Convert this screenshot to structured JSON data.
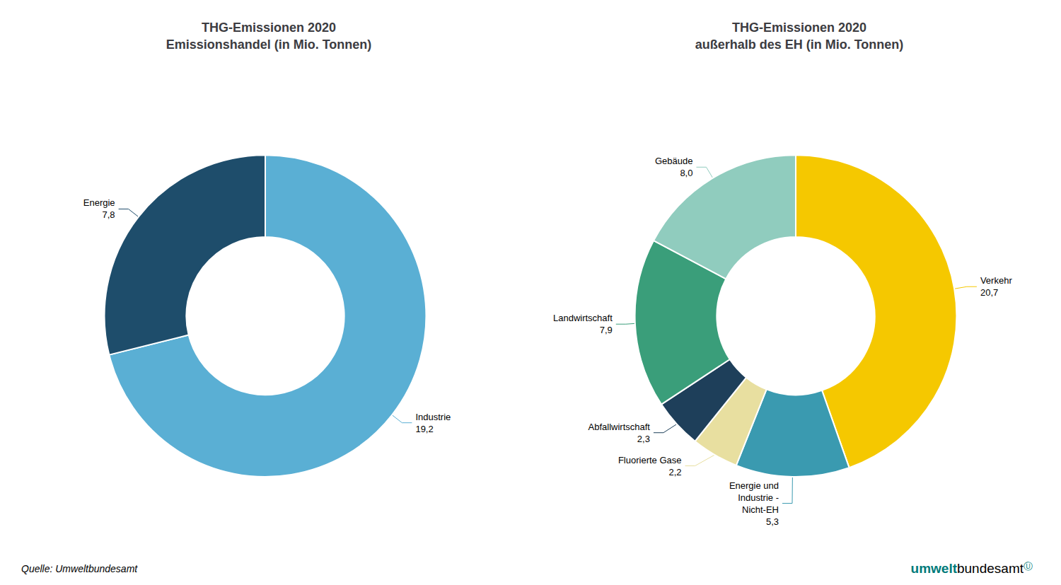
{
  "chart_data": [
    {
      "type": "pie",
      "title": "THG-Emissionen 2020\nEmissionshandel (in Mio. Tonnen)",
      "categories": [
        "Industrie",
        "Energie"
      ],
      "values": [
        19.2,
        7.8
      ],
      "value_labels": [
        "19,2",
        "7,8"
      ],
      "colors": [
        "#5aafd4",
        "#1e4d6b"
      ],
      "data_labels": true
    },
    {
      "type": "pie",
      "title": "THG-Emissionen 2020\naußerhalb des EH (in Mio. Tonnen)",
      "categories": [
        "Verkehr",
        "Energie und\nIndustrie -\nNicht-EH",
        "Fluorierte Gase",
        "Abfallwirtschaft",
        "Landwirtschaft",
        "Gebäude"
      ],
      "values": [
        20.7,
        5.3,
        2.2,
        2.3,
        7.9,
        8.0
      ],
      "value_labels": [
        "20,7",
        "5,3",
        "2,2",
        "2,3",
        "7,9",
        "8,0"
      ],
      "colors": [
        "#f5c800",
        "#3a9ab0",
        "#e8dfa0",
        "#1e3f5a",
        "#3a9e7a",
        "#90ccbe"
      ],
      "data_labels": true
    }
  ],
  "annotations": [
    {
      "text": "Quelle: Umweltbundesamt",
      "color": "#000000"
    },
    {
      "text": "umwelt",
      "color": "#007a7a"
    },
    {
      "text": "bundesamt",
      "color": "#000000"
    },
    {
      "text": "Ⓤ",
      "color": "#007a7a"
    }
  ]
}
